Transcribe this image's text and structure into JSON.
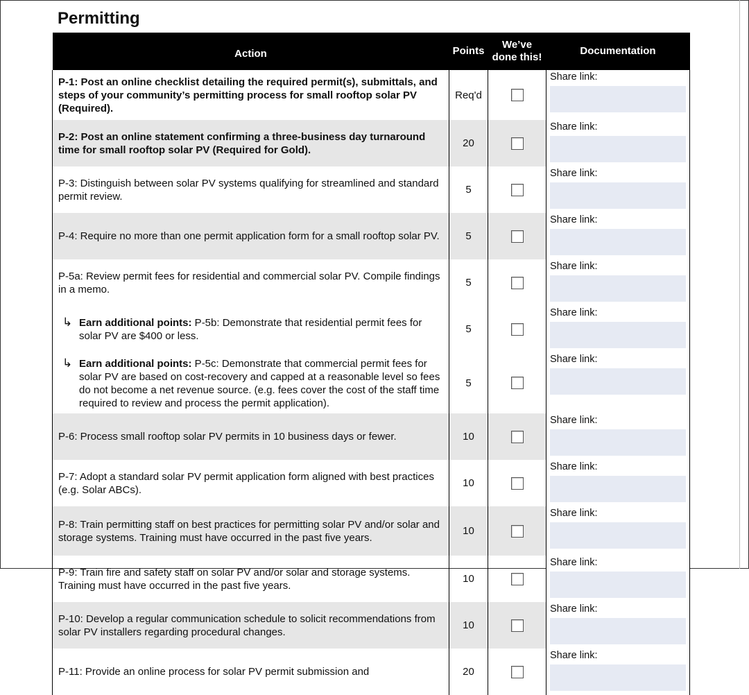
{
  "title": "Permitting",
  "headers": {
    "action": "Action",
    "points": "Points",
    "done": "We’ve done this!",
    "doc": "Documentation"
  },
  "share_label": "Share link:",
  "rows": [
    {
      "bold": "P-1: Post an online checklist detailing  the required permit(s), submittals, and steps of your community’s permitting process for small rooftop solar PV (Required).",
      "text": "",
      "points": "Req'd",
      "checked": false
    },
    {
      "bold": "P-2: Post an online statement confirming a three-business day turnaround time for small rooftop solar PV (Required for Gold).",
      "text": "",
      "points": "20",
      "checked": false
    },
    {
      "bold": "",
      "text": "P-3: Distinguish between solar PV systems qualifying for streamlined and standard permit review.",
      "points": "5",
      "checked": false
    },
    {
      "bold": "",
      "text": "P-4: Require no more than one permit application form for a small rooftop solar PV.",
      "points": "5",
      "checked": false
    },
    {
      "bold": "",
      "text": "P-5a: Review permit fees for residential and commercial solar PV. Compile findings in a memo.",
      "points": "5",
      "checked": false
    },
    {
      "bold": "Earn additional points:",
      "text": " P-5b: Demonstrate that residential permit fees for solar PV are $400 or less.",
      "points": "5",
      "checked": false
    },
    {
      "bold": "Earn additional points:",
      "text": " P-5c: Demonstrate that commercial permit fees for solar PV are based on cost-recovery and capped at a reasonable level so fees do not become a net revenue source. (e.g. fees cover the cost of the staff time required to review and process the permit application).",
      "points": "5",
      "checked": false
    },
    {
      "bold": "",
      "text": "P-6: Process small rooftop solar PV permits in 10 business days or fewer.",
      "points": "10",
      "checked": false
    },
    {
      "bold": "",
      "text": "P-7: Adopt a standard solar PV permit application form aligned with best practices (e.g. Solar ABCs).",
      "points": "10",
      "checked": false
    },
    {
      "bold": "",
      "text": "P-8: Train permitting staff on best practices for permitting solar PV and/or solar and storage systems. Training must have occurred in the past five years.",
      "points": "10",
      "checked": false
    },
    {
      "bold": "",
      "text": "P-9: Train fire and safety staff on solar PV and/or solar and storage systems. Training must have occurred in the past five years.",
      "points": "10",
      "checked": false
    },
    {
      "bold": "",
      "text": "P-10: Develop a regular communication schedule to solicit recommendations from solar PV installers regarding procedural  changes.",
      "points": "10",
      "checked": false
    },
    {
      "bold": "",
      "text": "P-11: Provide an online process for solar PV permit submission and",
      "points": "20",
      "checked": false
    }
  ]
}
